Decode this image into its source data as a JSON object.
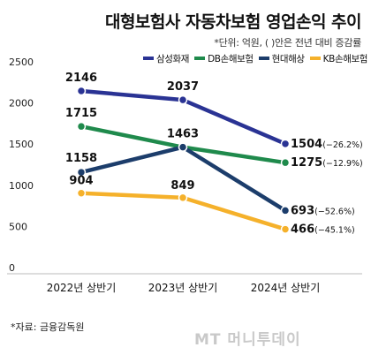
{
  "title": "대형보험사 자동차보험 영업손익 추이",
  "subtitle": "*단위: 억원, ( )안은 전년 대비 증감률",
  "source": "*자료: 금융감독원",
  "watermark": "MT 머니투데이",
  "chart_data": {
    "type": "line",
    "categories": [
      "2022년 상반기",
      "2023년 상반기",
      "2024년 상반기"
    ],
    "ylim": [
      0,
      2500
    ],
    "yticks": [
      0,
      500,
      1000,
      1500,
      2000,
      2500
    ],
    "grid": false,
    "legend": "top-right",
    "series": [
      {
        "name": "삼성화재",
        "color": "#2a3394",
        "values": [
          2146,
          2037,
          1504
        ],
        "change_label": "(−26.2%)"
      },
      {
        "name": "DB손해보험",
        "color": "#1f8a4c",
        "values": [
          1715,
          1463,
          1275
        ],
        "change_label": "(−12.9%)"
      },
      {
        "name": "현대해상",
        "color": "#1c3d6b",
        "values": [
          1158,
          1463,
          693
        ],
        "change_label": "(−52.6%)"
      },
      {
        "name": "KB손해보험",
        "color": "#f5b12b",
        "values": [
          904,
          849,
          466
        ],
        "change_label": "(−45.1%)"
      }
    ]
  }
}
